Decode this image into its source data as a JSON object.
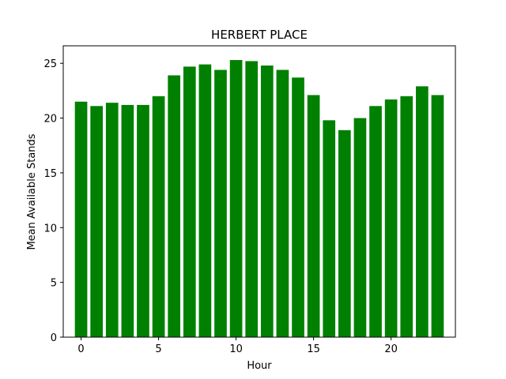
{
  "chart_data": {
    "type": "bar",
    "title": "HERBERT PLACE",
    "xlabel": "Hour",
    "ylabel": "Mean Available Stands",
    "x": [
      0,
      1,
      2,
      3,
      4,
      5,
      6,
      7,
      8,
      9,
      10,
      11,
      12,
      13,
      14,
      15,
      16,
      17,
      18,
      19,
      20,
      21,
      22,
      23
    ],
    "values": [
      21.5,
      21.1,
      21.4,
      21.2,
      21.2,
      22.0,
      23.9,
      24.7,
      24.9,
      24.4,
      25.3,
      25.2,
      24.8,
      24.4,
      23.7,
      22.1,
      19.8,
      18.9,
      20.0,
      21.1,
      21.7,
      22.0,
      22.9,
      22.1
    ],
    "xlim": [
      -1.15,
      24.15
    ],
    "ylim": [
      0,
      26.6
    ],
    "xticks": [
      0,
      5,
      10,
      15,
      20
    ],
    "yticks": [
      0,
      5,
      10,
      15,
      20,
      25
    ],
    "bar_color": "#008000",
    "grid": false
  }
}
